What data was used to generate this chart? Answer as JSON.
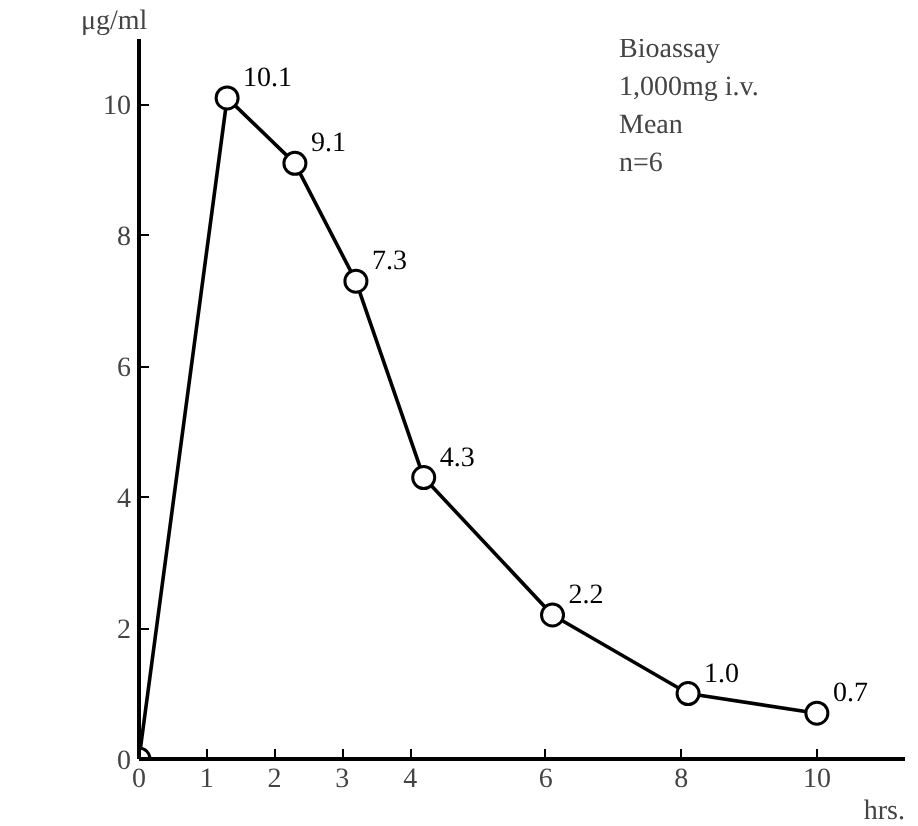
{
  "chart_data": {
    "type": "line",
    "xlabel": "hrs.",
    "ylabel": "μg/ml",
    "x": [
      0,
      1.3,
      2.3,
      3.2,
      4.2,
      6.1,
      8.1,
      10
    ],
    "series": [
      {
        "color": "#000000",
        "values": [
          0,
          10.1,
          9.1,
          7.3,
          4.3,
          2.2,
          1.0,
          0.7
        ],
        "value_labels": [
          null,
          "10.1",
          "9.1",
          "7.3",
          "4.3",
          "2.2",
          "1.0",
          "0.7"
        ]
      }
    ],
    "xlim": [
      0,
      11.3
    ],
    "ylim": [
      0,
      11
    ],
    "xticks": [
      0,
      1,
      2,
      3,
      4,
      6,
      8,
      10
    ],
    "yticks": [
      0,
      2,
      4,
      6,
      8,
      10
    ],
    "annotations": [
      "Bioassay",
      "1,000mg i.v.",
      "Mean",
      "n=6"
    ],
    "marker": "circle",
    "line_style": "solid",
    "grid": false
  }
}
